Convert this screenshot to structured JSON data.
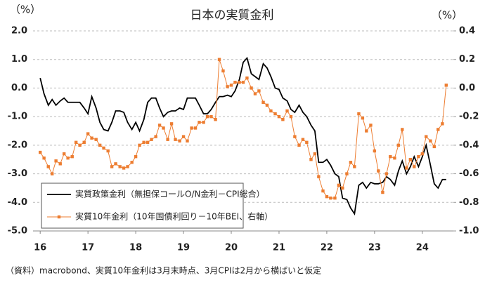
{
  "chart_data": {
    "type": "line",
    "title": "日本の実質金利",
    "y_label": "（%）",
    "y2_label": "（%）",
    "footnote": "（資料）macrobond、実質10年金利は3月末時点、3月CPIは2月から横ばいと仮定",
    "x": [
      16.0,
      16.08,
      16.17,
      16.25,
      16.33,
      16.42,
      16.5,
      16.58,
      16.67,
      16.75,
      16.83,
      16.92,
      17.0,
      17.08,
      17.17,
      17.25,
      17.33,
      17.42,
      17.5,
      17.58,
      17.67,
      17.75,
      17.83,
      17.92,
      18.0,
      18.08,
      18.17,
      18.25,
      18.33,
      18.42,
      18.5,
      18.58,
      18.67,
      18.75,
      18.83,
      18.92,
      19.0,
      19.08,
      19.17,
      19.25,
      19.33,
      19.42,
      19.5,
      19.58,
      19.67,
      19.75,
      19.83,
      19.92,
      20.0,
      20.08,
      20.17,
      20.25,
      20.33,
      20.42,
      20.5,
      20.58,
      20.67,
      20.75,
      20.83,
      20.92,
      21.0,
      21.08,
      21.17,
      21.25,
      21.33,
      21.42,
      21.5,
      21.58,
      21.67,
      21.75,
      21.83,
      21.92,
      22.0,
      22.08,
      22.17,
      22.25,
      22.33,
      22.42,
      22.5,
      22.58,
      22.67,
      22.75,
      22.83,
      22.92,
      23.0,
      23.08,
      23.17,
      23.25,
      23.33,
      23.42,
      23.5,
      23.58,
      23.67,
      23.75,
      23.83,
      23.92,
      24.0,
      24.08,
      24.17,
      24.25,
      24.33,
      24.42,
      24.5
    ],
    "series": [
      {
        "name": "実質政策金利（無担保コールO/N金利－CPI総合）",
        "color": "#000000",
        "values": [
          0.35,
          -0.2,
          -0.6,
          -0.4,
          -0.6,
          -0.45,
          -0.35,
          -0.5,
          -0.5,
          -0.5,
          -0.5,
          -0.7,
          -0.9,
          -0.3,
          -0.7,
          -1.2,
          -1.45,
          -1.5,
          -1.2,
          -0.8,
          -0.8,
          -0.85,
          -1.2,
          -1.45,
          -1.2,
          -1.5,
          -1.1,
          -0.5,
          -0.35,
          -0.35,
          -0.7,
          -1.0,
          -0.85,
          -0.8,
          -0.8,
          -0.7,
          -0.75,
          -0.35,
          -0.35,
          -0.35,
          -0.6,
          -0.9,
          -0.9,
          -0.75,
          -0.5,
          -0.3,
          -0.3,
          -0.25,
          -0.3,
          -0.1,
          0.3,
          0.9,
          1.05,
          0.5,
          0.4,
          0.3,
          0.85,
          0.7,
          0.4,
          0.0,
          -0.05,
          -0.35,
          -0.45,
          -0.75,
          -0.85,
          -0.6,
          -0.85,
          -1.0,
          -1.3,
          -1.5,
          -2.6,
          -2.6,
          -2.5,
          -2.7,
          -3.0,
          -3.1,
          -3.85,
          -3.9,
          -4.2,
          -4.4,
          -3.4,
          -3.3,
          -3.5,
          -3.3,
          -3.35,
          -3.35,
          -3.3,
          -3.1,
          -3.2,
          -3.4,
          -2.9,
          -2.55,
          -3.0,
          -2.75,
          -2.4,
          -2.75,
          -2.4,
          -2.0,
          -2.7,
          -3.35,
          -3.5,
          -3.2,
          -3.2
        ]
      },
      {
        "name": "実質10年金利（10年国債利回り－10年BEI、右軸）",
        "color": "#ed7d31",
        "axis": "y2",
        "marker": "square",
        "values": [
          -0.45,
          -0.49,
          -0.55,
          -0.6,
          -0.51,
          -0.53,
          -0.46,
          -0.49,
          -0.48,
          -0.38,
          -0.4,
          -0.38,
          -0.32,
          -0.35,
          -0.36,
          -0.4,
          -0.42,
          -0.44,
          -0.55,
          -0.53,
          -0.55,
          -0.56,
          -0.55,
          -0.52,
          -0.48,
          -0.4,
          -0.38,
          -0.38,
          -0.36,
          -0.34,
          -0.26,
          -0.28,
          -0.36,
          -0.25,
          -0.36,
          -0.37,
          -0.34,
          -0.37,
          -0.28,
          -0.28,
          -0.24,
          -0.24,
          -0.2,
          -0.2,
          -0.22,
          0.2,
          0.12,
          0.01,
          0.02,
          0.04,
          0.04,
          0.04,
          0.07,
          0.0,
          -0.04,
          -0.02,
          -0.1,
          -0.12,
          -0.16,
          -0.18,
          -0.2,
          -0.22,
          -0.16,
          -0.2,
          -0.34,
          -0.4,
          -0.36,
          -0.38,
          -0.5,
          -0.46,
          -0.62,
          -0.72,
          -0.76,
          -0.77,
          -0.77,
          -0.68,
          -0.7,
          -0.6,
          -0.52,
          -0.55,
          -0.18,
          -0.21,
          -0.3,
          -0.26,
          -0.44,
          -0.58,
          -0.73,
          -0.6,
          -0.48,
          -0.49,
          -0.4,
          -0.29,
          -0.56,
          -0.5,
          -0.55,
          -0.48,
          -0.46,
          -0.34,
          -0.37,
          -0.41,
          -0.29,
          -0.25,
          0.02
        ]
      }
    ],
    "xlim": [
      15.85,
      24.65
    ],
    "xticks": [
      16,
      17,
      18,
      19,
      20,
      21,
      22,
      23,
      24
    ],
    "ylim": [
      -5,
      2
    ],
    "yticks": [
      {
        "value": 2,
        "label": "2.0"
      },
      {
        "value": 1,
        "label": "1.0"
      },
      {
        "value": 0,
        "label": "0.0"
      },
      {
        "value": -1,
        "label": "-1.0"
      },
      {
        "value": -2,
        "label": "-2.0"
      },
      {
        "value": -3,
        "label": "-3.0"
      },
      {
        "value": -4,
        "label": "-4.0"
      },
      {
        "value": -5,
        "label": "-5.0"
      }
    ],
    "y2lim": [
      -1,
      0.4
    ],
    "y2ticks": [
      0.4,
      0.2,
      {
        "value": 0,
        "label": "0.0"
      },
      -0.2,
      -0.4,
      -0.6,
      -0.8,
      {
        "value": -1,
        "label": "-1.0"
      }
    ],
    "grid": true,
    "legend": "lower left"
  }
}
